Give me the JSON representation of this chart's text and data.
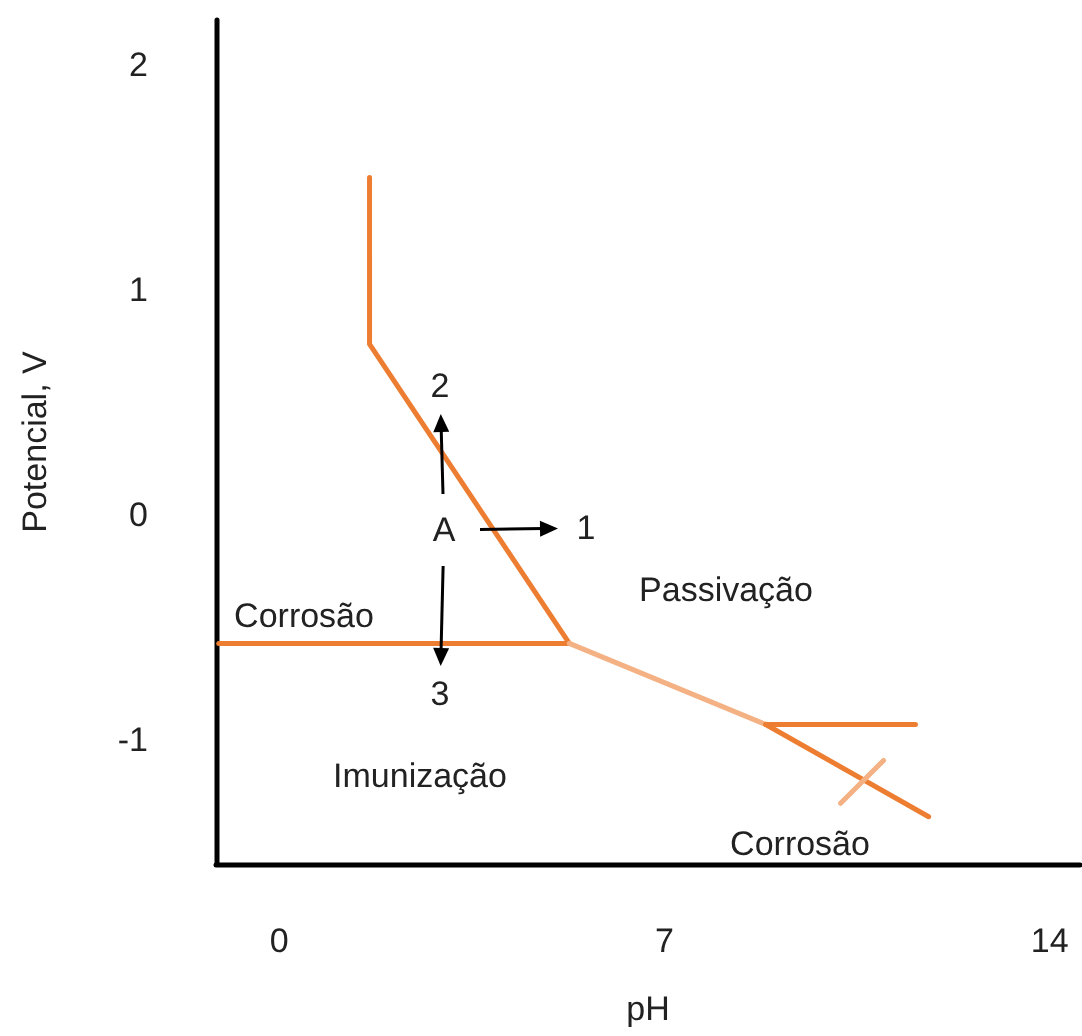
{
  "chart_data": {
    "type": "line",
    "xlabel": "pH",
    "ylabel": "Potencial, V",
    "xlim": [
      -1.15,
      14.55
    ],
    "xticks": [
      0,
      7,
      14
    ],
    "ylim": [
      -1.55,
      2.2
    ],
    "yticks": [
      -1,
      0,
      1,
      2
    ],
    "marker": "none",
    "line_style": "solid",
    "series": [
      {
        "color": "#ed7d31",
        "x": [
          1.64,
          1.64,
          5.27
        ],
        "values": [
          1.5,
          0.76,
          -0.57
        ]
      },
      {
        "color": "#ed7d31",
        "x": [
          -1.1,
          5.27
        ],
        "values": [
          -0.57,
          -0.57
        ]
      },
      {
        "color": "#f4b183",
        "x": [
          5.27,
          8.84
        ],
        "values": [
          -0.57,
          -0.93
        ]
      },
      {
        "color": "#ed7d31",
        "x": [
          8.84,
          11.8
        ],
        "values": [
          -0.93,
          -1.34
        ]
      },
      {
        "color": "#ed7d31",
        "x": [
          8.84,
          11.56
        ],
        "values": [
          -0.93,
          -0.93
        ]
      },
      {
        "color": "#f4b183",
        "x": [
          10.2,
          10.98
        ],
        "values": [
          -1.28,
          -1.09
        ]
      }
    ],
    "annotations": [
      "A",
      "1",
      "2",
      "3",
      "Corrosão",
      "Passivação",
      "Imunização",
      "Corrosão"
    ]
  }
}
